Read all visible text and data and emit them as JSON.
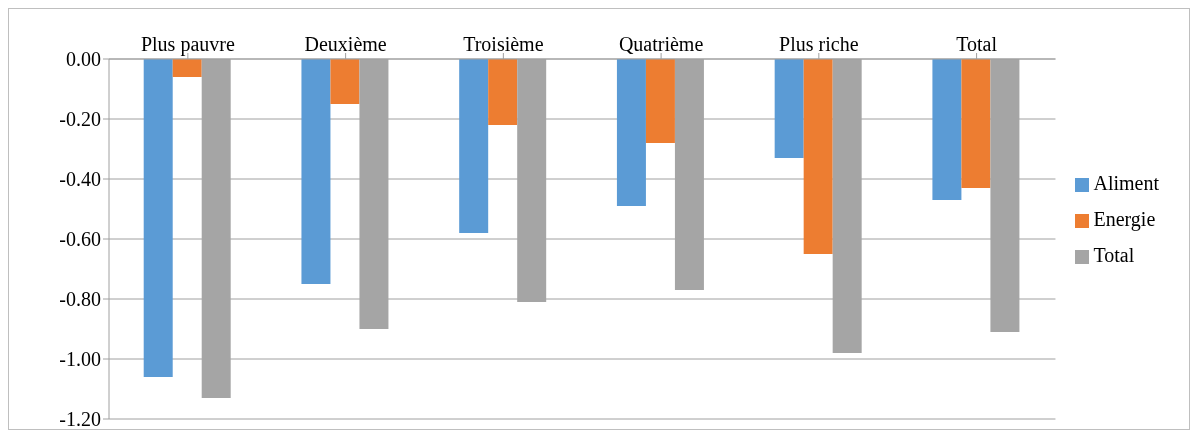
{
  "chart_data": {
    "type": "bar",
    "categories": [
      "Plus pauvre",
      "Deuxième",
      "Troisième",
      "Quatrième",
      "Plus riche",
      "Total"
    ],
    "series": [
      {
        "name": "Aliment",
        "color": "#5b9bd5",
        "values": [
          -1.06,
          -0.75,
          -0.58,
          -0.49,
          -0.33,
          -0.47
        ]
      },
      {
        "name": "Energie",
        "color": "#ed7d31",
        "values": [
          -0.06,
          -0.15,
          -0.22,
          -0.28,
          -0.65,
          -0.43
        ]
      },
      {
        "name": "Total",
        "color": "#a5a5a5",
        "values": [
          -1.13,
          -0.9,
          -0.81,
          -0.77,
          -0.98,
          -0.91
        ]
      }
    ],
    "ylim": [
      -1.2,
      0
    ],
    "yticks": [
      {
        "value": 0,
        "label": "0.00"
      },
      {
        "value": -0.2,
        "label": "-0.20"
      },
      {
        "value": -0.4,
        "label": "-0.40"
      },
      {
        "value": -0.6,
        "label": "-0.60"
      },
      {
        "value": -0.8,
        "label": "-0.80"
      },
      {
        "value": -1,
        "label": "-1.00"
      },
      {
        "value": -1.2,
        "label": "-1.20"
      }
    ],
    "grid": "y",
    "legend": "right"
  }
}
